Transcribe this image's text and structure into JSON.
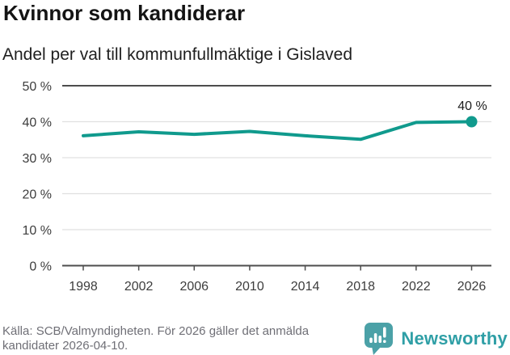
{
  "header": {
    "title": "Kvinnor som kandiderar",
    "subtitle": "Andel per val till kommunfullmäktige i Gislaved"
  },
  "chart_data": {
    "type": "line",
    "title": "Kvinnor som kandiderar",
    "subtitle": "Andel per val till kommunfullmäktige i Gislaved",
    "x": [
      1998,
      2002,
      2006,
      2010,
      2014,
      2018,
      2022,
      2026
    ],
    "values": [
      36.1,
      37.2,
      36.5,
      37.3,
      36.1,
      35.1,
      39.8,
      40
    ],
    "unit": "%",
    "xtick_labels": [
      "1998",
      "2002",
      "2006",
      "2010",
      "2014",
      "2018",
      "2022",
      "2026"
    ],
    "yticks": [
      0,
      10,
      20,
      30,
      40,
      50
    ],
    "ytick_labels": [
      "0 %",
      "10 %",
      "20 %",
      "30 %",
      "40 %",
      "50 %"
    ],
    "ylim": [
      0,
      50
    ],
    "grid": true,
    "legend": "none",
    "end_point_label": "40 %",
    "line_color": "#109a8d",
    "marker_color": "#109a8d",
    "grid_color_light": "#e0e0e0",
    "grid_color_dark": "#4d4d4d"
  },
  "footer": {
    "source_lines": [
      "Källa: SCB/Valmyndigheten. För 2026 gäller det anmälda",
      "kandidater 2026-04-10."
    ]
  },
  "branding": {
    "wordmark": "Newsworthy",
    "logo_icon": "speech-bubble-bar-chart-icon",
    "logo_color": "#4ba1a7",
    "wordmark_color": "#2f9fa6"
  }
}
